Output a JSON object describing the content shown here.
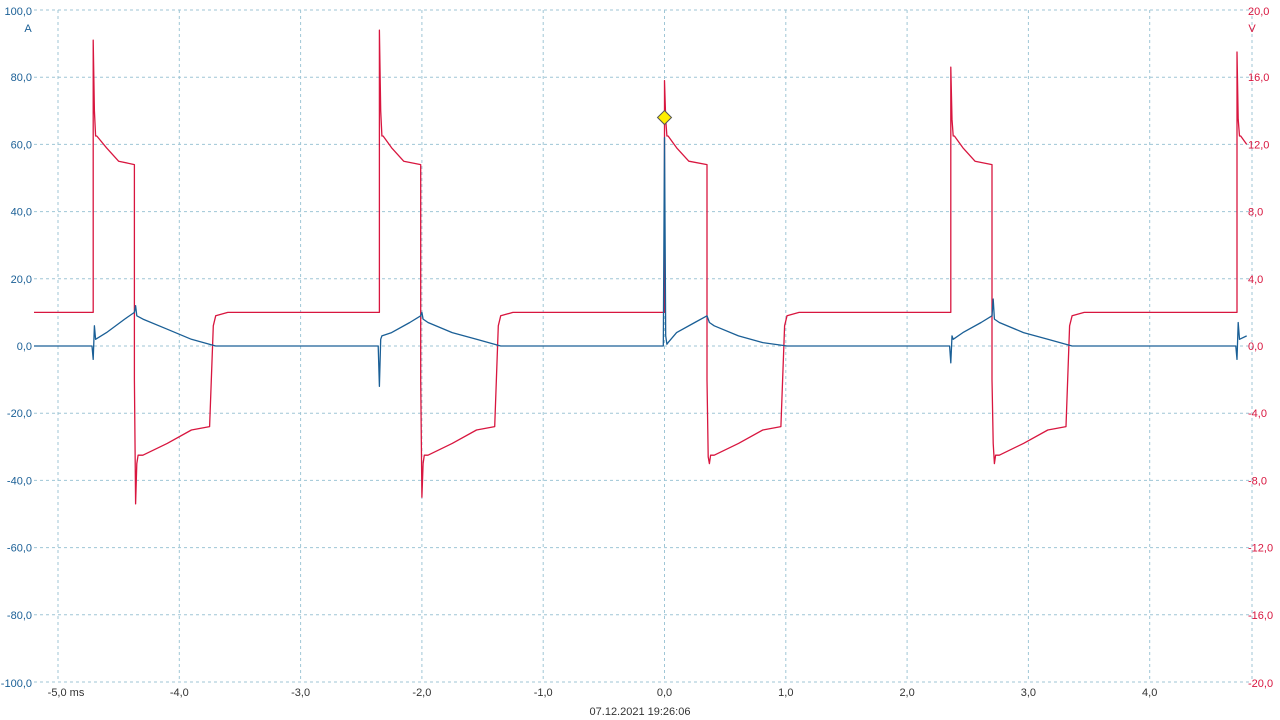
{
  "chart_data": {
    "type": "line",
    "timestamp": "07.12.2021 19:26:06",
    "grid": true,
    "x_axis": {
      "range": [
        -5.0,
        4.8
      ],
      "ticks": [
        -5,
        -4,
        -3,
        -2,
        -1,
        0,
        1,
        2,
        3,
        4
      ],
      "tick_labels": [
        "-5,0 ms",
        "-4,0",
        "-3,0",
        "-2,0",
        "-1,0",
        "0,0",
        "1,0",
        "2,0",
        "3,0",
        "4,0"
      ]
    },
    "y_left": {
      "unit": "A",
      "range": [
        -100,
        100
      ],
      "ticks": [
        100,
        80,
        60,
        40,
        20,
        0,
        -20,
        -40,
        -60,
        -80,
        -100
      ],
      "tick_labels": [
        "100,0",
        "80,0",
        "60,0",
        "40,0",
        "20,0",
        "0,0",
        "-20,0",
        "-40,0",
        "-60,0",
        "-80,0",
        "-100,0"
      ],
      "color": "#1a5f96"
    },
    "y_right": {
      "unit": "V",
      "range": [
        -20,
        20
      ],
      "ticks": [
        20,
        16,
        12,
        8,
        4,
        0,
        -4,
        -8,
        -12,
        -16,
        -20
      ],
      "tick_labels": [
        "20,0",
        "16,0",
        "12,0",
        "8,0",
        "4,0",
        "0,0",
        "-4,0",
        "-8,0",
        "-12,0",
        "-16,0",
        "-20,0"
      ],
      "color": "#d8163f"
    },
    "series": [
      {
        "axis": "right",
        "color": "#d8163f",
        "x": [
          -5.2,
          -4.71,
          -4.71,
          -4.7,
          -4.69,
          -4.68,
          -4.6,
          -4.5,
          -4.37,
          -4.37,
          -4.36,
          -4.35,
          -4.34,
          -4.3,
          -4.1,
          -3.9,
          -3.75,
          -3.72,
          -3.7,
          -3.6,
          -3.4,
          -2.35,
          -2.35,
          -2.34,
          -2.33,
          -2.32,
          -2.25,
          -2.15,
          -2.01,
          -2.01,
          -2.0,
          -1.99,
          -1.98,
          -1.95,
          -1.75,
          -1.55,
          -1.4,
          -1.37,
          -1.35,
          -1.25,
          -1.0,
          0.0,
          0.0,
          0.01,
          0.02,
          0.03,
          0.1,
          0.2,
          0.35,
          0.35,
          0.36,
          0.37,
          0.38,
          0.41,
          0.61,
          0.81,
          0.96,
          0.99,
          1.01,
          1.11,
          1.31,
          2.36,
          2.36,
          2.37,
          2.38,
          2.39,
          2.46,
          2.56,
          2.7,
          2.7,
          2.71,
          2.72,
          2.73,
          2.76,
          2.96,
          3.16,
          3.31,
          3.34,
          3.36,
          3.46,
          3.66,
          4.72,
          4.72,
          4.73,
          4.74,
          4.75,
          4.8
        ],
        "y": [
          2.0,
          2.0,
          18.2,
          14.0,
          12.5,
          12.5,
          11.8,
          11.0,
          10.8,
          -2.0,
          -9.4,
          -7.0,
          -6.5,
          -6.5,
          -5.8,
          -5.0,
          -4.8,
          1.2,
          1.8,
          2.0,
          2.0,
          2.0,
          18.8,
          14.0,
          12.5,
          12.5,
          11.8,
          11.0,
          10.8,
          -2.0,
          -9.0,
          -7.0,
          -6.5,
          -6.5,
          -5.8,
          -5.0,
          -4.8,
          1.2,
          1.8,
          2.0,
          2.0,
          2.0,
          15.8,
          13.5,
          12.5,
          12.5,
          11.8,
          11.0,
          10.8,
          -2.0,
          -6.6,
          -7.0,
          -6.5,
          -6.5,
          -5.8,
          -5.0,
          -4.8,
          1.2,
          1.8,
          2.0,
          2.0,
          2.0,
          16.6,
          13.5,
          12.5,
          12.5,
          11.8,
          11.0,
          10.8,
          -2.0,
          -5.8,
          -7.0,
          -6.5,
          -6.5,
          -5.8,
          -5.0,
          -4.8,
          1.2,
          1.8,
          2.0,
          2.0,
          2.0,
          17.5,
          13.5,
          12.5,
          12.5,
          12.0
        ]
      },
      {
        "axis": "left",
        "color": "#1a5f96",
        "x": [
          -5.2,
          -4.72,
          -4.71,
          -4.7,
          -4.69,
          -4.6,
          -4.45,
          -4.37,
          -4.36,
          -4.35,
          -4.3,
          -4.1,
          -3.9,
          -3.7,
          -2.36,
          -2.35,
          -2.34,
          -2.33,
          -2.25,
          -2.1,
          -2.01,
          -2.0,
          -1.99,
          -1.95,
          -1.75,
          -1.55,
          -1.35,
          -0.01,
          0.0,
          0.01,
          0.02,
          0.03,
          0.1,
          0.25,
          0.35,
          0.36,
          0.37,
          0.41,
          0.61,
          0.81,
          1.01,
          2.35,
          2.36,
          2.37,
          2.38,
          2.46,
          2.61,
          2.7,
          2.71,
          2.72,
          2.76,
          2.96,
          3.16,
          3.36,
          4.71,
          4.72,
          4.73,
          4.74,
          4.8
        ],
        "y": [
          0.0,
          0.0,
          -4.0,
          6.0,
          2.0,
          4.0,
          8.0,
          10.0,
          12.0,
          9.0,
          8.0,
          5.0,
          2.0,
          0.0,
          0.0,
          -12.0,
          2.0,
          3.0,
          4.0,
          7.0,
          9.0,
          10.0,
          8.0,
          7.0,
          4.0,
          2.0,
          0.0,
          0.0,
          62.0,
          3.0,
          0.5,
          1.0,
          4.0,
          7.0,
          9.0,
          8.0,
          7.0,
          6.0,
          3.0,
          1.0,
          0.0,
          0.0,
          -5.0,
          3.0,
          2.0,
          4.0,
          7.0,
          9.0,
          14.0,
          8.0,
          7.0,
          4.0,
          2.0,
          0.0,
          0.0,
          -4.0,
          7.0,
          2.0,
          3.0
        ]
      }
    ],
    "marker": {
      "x": 0.0,
      "y_left": 68.0,
      "shape": "diamond",
      "color": "#ffee00"
    }
  }
}
